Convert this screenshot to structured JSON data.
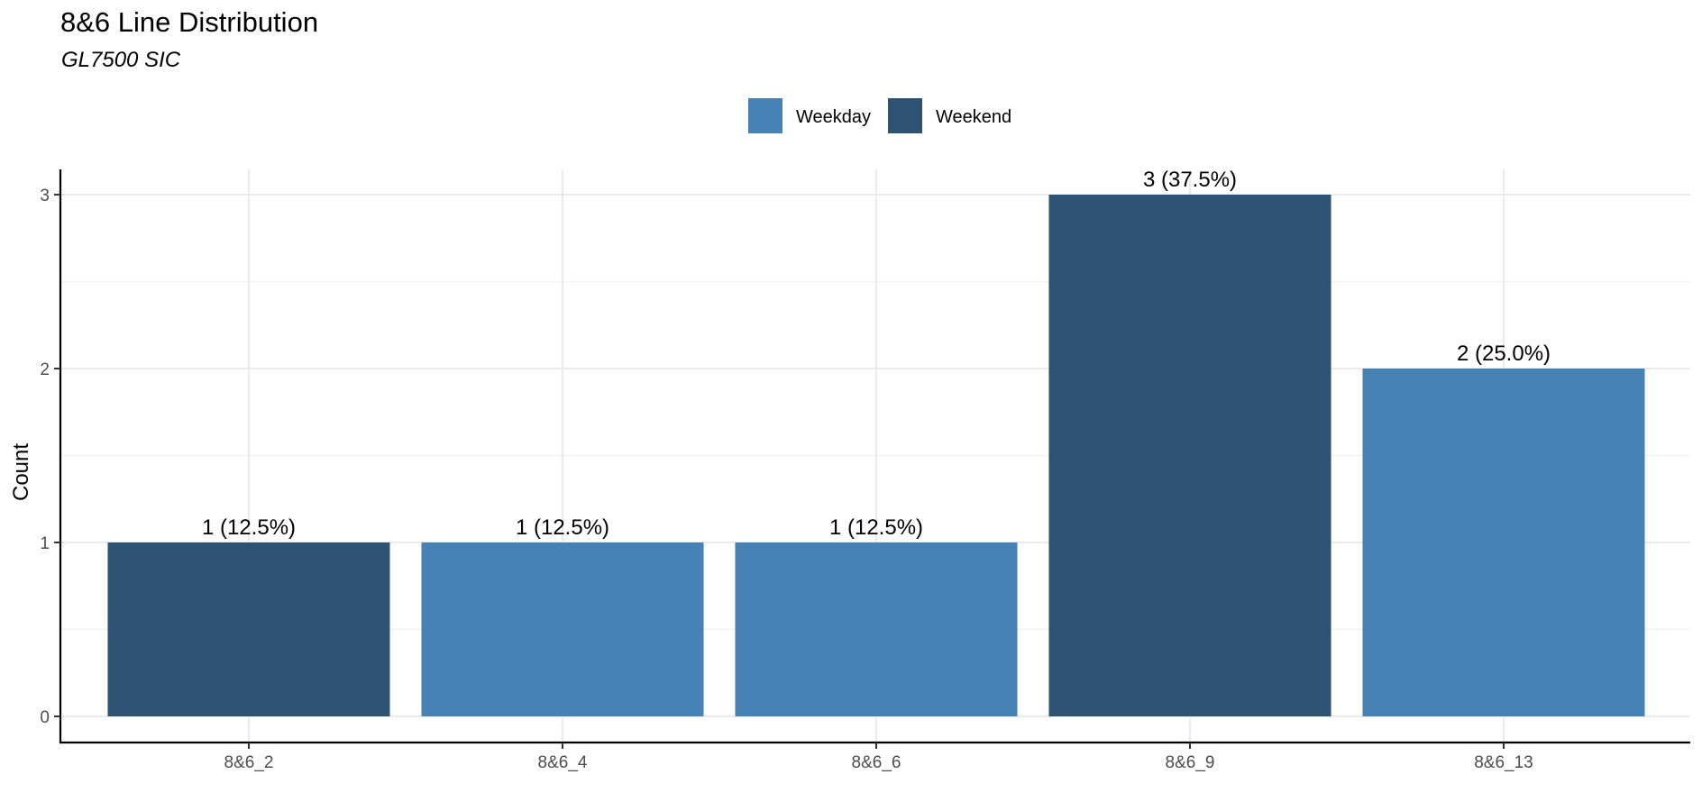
{
  "chart_data": {
    "type": "bar",
    "title": "8&6 Line Distribution",
    "subtitle": "GL7500 SIC",
    "xlabel": "",
    "ylabel": "Count",
    "categories": [
      "8&6_2",
      "8&6_4",
      "8&6_6",
      "8&6_9",
      "8&6_13"
    ],
    "values": [
      1,
      1,
      1,
      3,
      2
    ],
    "groups": [
      "Weekend",
      "Weekday",
      "Weekday",
      "Weekend",
      "Weekday"
    ],
    "data_labels": [
      "1 (12.5%)",
      "1 (12.5%)",
      "1 (12.5%)",
      "3 (37.5%)",
      "2 (25.0%)"
    ],
    "ylim": [
      0,
      3
    ],
    "yticks": [
      0,
      1,
      2,
      3
    ],
    "grid": true,
    "legend": {
      "position": "top",
      "items": [
        {
          "label": "Weekday",
          "color": "#4682b4"
        },
        {
          "label": "Weekend",
          "color": "#2d5272"
        }
      ]
    }
  }
}
